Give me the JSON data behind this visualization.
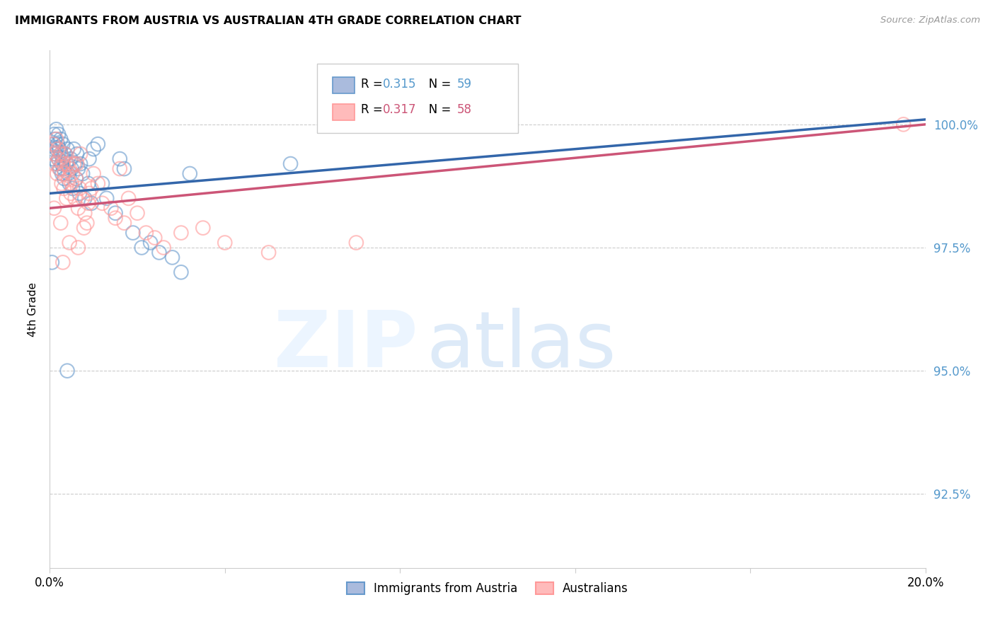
{
  "title": "IMMIGRANTS FROM AUSTRIA VS AUSTRALIAN 4TH GRADE CORRELATION CHART",
  "source": "Source: ZipAtlas.com",
  "ylabel": "4th Grade",
  "y_ticks": [
    92.5,
    95.0,
    97.5,
    100.0
  ],
  "y_tick_labels": [
    "92.5%",
    "95.0%",
    "97.5%",
    "100.0%"
  ],
  "xlim": [
    0.0,
    20.0
  ],
  "ylim": [
    91.0,
    101.5
  ],
  "blue_r": 0.315,
  "blue_n": 59,
  "pink_r": 0.317,
  "pink_n": 58,
  "blue_color": "#6699CC",
  "pink_color": "#FF9999",
  "blue_line_color": "#3366AA",
  "pink_line_color": "#CC5577",
  "legend_blue_label": "Immigrants from Austria",
  "legend_pink_label": "Australians",
  "blue_scatter_x": [
    0.05,
    0.08,
    0.1,
    0.1,
    0.12,
    0.13,
    0.15,
    0.15,
    0.17,
    0.18,
    0.2,
    0.2,
    0.22,
    0.23,
    0.25,
    0.25,
    0.27,
    0.28,
    0.3,
    0.3,
    0.32,
    0.33,
    0.35,
    0.38,
    0.4,
    0.42,
    0.45,
    0.48,
    0.5,
    0.52,
    0.55,
    0.58,
    0.6,
    0.62,
    0.65,
    0.68,
    0.7,
    0.75,
    0.8,
    0.88,
    0.9,
    0.95,
    1.0,
    1.1,
    1.2,
    1.3,
    1.5,
    1.6,
    1.7,
    1.9,
    2.1,
    2.3,
    2.5,
    2.8,
    3.0,
    3.2,
    5.5,
    0.05,
    0.4
  ],
  "blue_scatter_y": [
    99.5,
    99.3,
    99.8,
    99.6,
    99.7,
    99.4,
    99.9,
    99.5,
    99.2,
    99.6,
    99.8,
    99.3,
    99.5,
    99.1,
    99.7,
    99.4,
    99.2,
    99.0,
    99.6,
    99.3,
    99.1,
    98.9,
    99.4,
    99.2,
    99.5,
    99.0,
    98.8,
    99.3,
    99.1,
    98.7,
    99.5,
    99.2,
    98.9,
    99.4,
    99.1,
    98.6,
    99.2,
    99.0,
    98.5,
    98.8,
    99.3,
    98.4,
    99.5,
    99.6,
    98.8,
    98.5,
    98.2,
    99.3,
    99.1,
    97.8,
    97.5,
    97.6,
    97.4,
    97.3,
    97.0,
    99.0,
    99.2,
    97.2,
    95.0
  ],
  "pink_scatter_x": [
    0.08,
    0.1,
    0.12,
    0.15,
    0.17,
    0.18,
    0.2,
    0.22,
    0.25,
    0.27,
    0.3,
    0.32,
    0.33,
    0.35,
    0.38,
    0.4,
    0.42,
    0.45,
    0.48,
    0.5,
    0.52,
    0.55,
    0.58,
    0.6,
    0.62,
    0.65,
    0.68,
    0.7,
    0.75,
    0.78,
    0.8,
    0.85,
    0.88,
    0.9,
    0.95,
    1.0,
    1.1,
    1.2,
    1.4,
    1.5,
    1.6,
    1.7,
    1.8,
    2.0,
    2.2,
    2.4,
    2.6,
    3.0,
    3.5,
    4.0,
    5.0,
    7.0,
    0.1,
    0.25,
    0.45,
    0.65,
    19.5,
    0.3
  ],
  "pink_scatter_y": [
    99.6,
    99.4,
    99.2,
    99.7,
    99.0,
    99.5,
    99.3,
    99.1,
    99.4,
    98.8,
    99.2,
    98.7,
    99.0,
    99.4,
    98.5,
    99.2,
    98.9,
    99.1,
    98.6,
    98.8,
    99.0,
    99.2,
    98.5,
    98.9,
    99.2,
    98.3,
    98.7,
    99.4,
    98.5,
    97.9,
    98.2,
    98.0,
    98.4,
    98.6,
    98.7,
    99.0,
    98.8,
    98.4,
    98.3,
    98.1,
    99.1,
    98.0,
    98.5,
    98.2,
    97.8,
    97.7,
    97.5,
    97.8,
    97.9,
    97.6,
    97.4,
    97.6,
    98.3,
    98.0,
    97.6,
    97.5,
    100.0,
    97.2
  ],
  "blue_line_x": [
    0.0,
    20.0
  ],
  "blue_line_y": [
    98.6,
    100.1
  ],
  "pink_line_x": [
    0.0,
    20.0
  ],
  "pink_line_y": [
    98.3,
    100.0
  ],
  "grid_color": "#cccccc",
  "spine_color": "#cccccc"
}
